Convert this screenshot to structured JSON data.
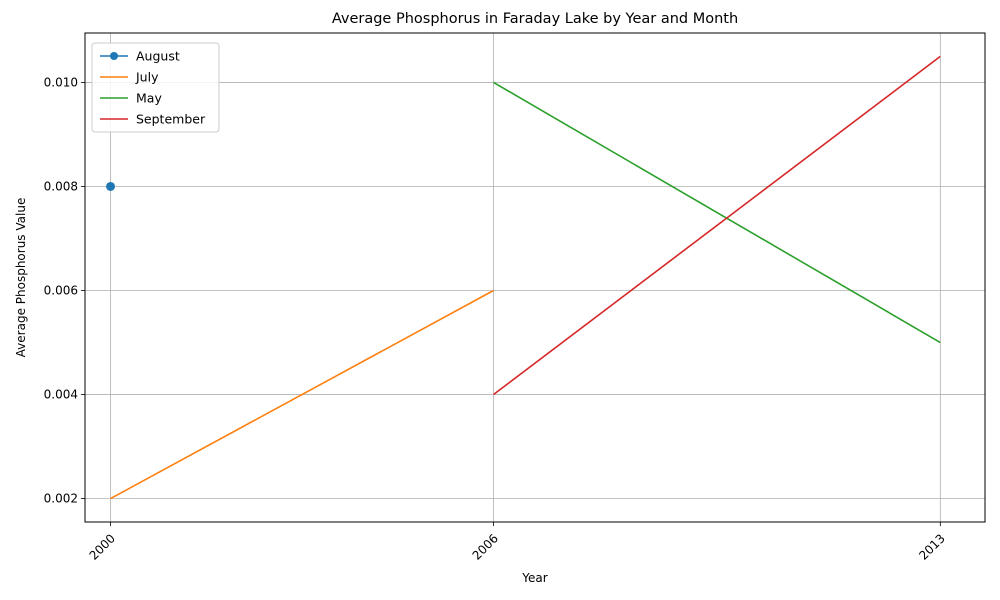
{
  "chart_data": {
    "type": "line",
    "title": "Average Phosphorus in Faraday Lake by Year and Month",
    "xlabel": "Year",
    "ylabel": "Average Phosphorus Value",
    "x_ticks": [
      "2000",
      "2006",
      "2013"
    ],
    "y_ticks": [
      "0.002",
      "0.004",
      "0.006",
      "0.008",
      "0.010"
    ],
    "xlim": [
      1999.6,
      2013.7
    ],
    "ylim": [
      0.00155,
      0.01095
    ],
    "grid": true,
    "legend_position": "upper-left",
    "series": [
      {
        "name": "August",
        "color": "#1f77b4",
        "marker": "circle",
        "x": [
          2000
        ],
        "y": [
          0.008
        ]
      },
      {
        "name": "July",
        "color": "#ff7f0e",
        "marker": "none",
        "x": [
          2000,
          2006
        ],
        "y": [
          0.002,
          0.006
        ]
      },
      {
        "name": "May",
        "color": "#2ca02c",
        "marker": "none",
        "x": [
          2006,
          2013
        ],
        "y": [
          0.01,
          0.005
        ]
      },
      {
        "name": "September",
        "color": "#d62728",
        "marker": "none",
        "x": [
          2006,
          2013
        ],
        "y": [
          0.004,
          0.0105
        ]
      }
    ]
  }
}
